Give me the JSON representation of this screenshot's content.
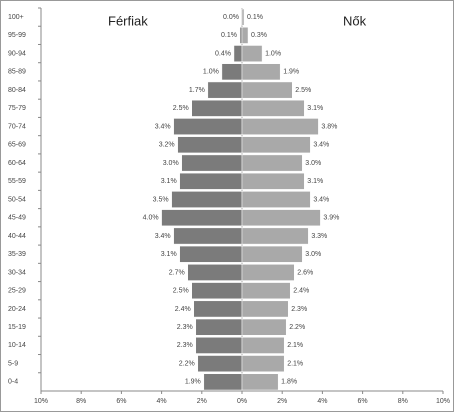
{
  "chart_data": {
    "type": "population-pyramid",
    "categories": [
      "100+",
      "95-99",
      "90-94",
      "85-89",
      "80-84",
      "75-79",
      "70-74",
      "65-69",
      "60-64",
      "55-59",
      "50-54",
      "45-49",
      "40-44",
      "35-39",
      "30-34",
      "25-29",
      "20-24",
      "15-19",
      "10-14",
      "5-9",
      "0-4"
    ],
    "series": [
      {
        "name": "Férfiak",
        "side": "left",
        "color": "#7b7b7b",
        "values": [
          0.0,
          0.1,
          0.4,
          1.0,
          1.7,
          2.5,
          3.4,
          3.2,
          3.0,
          3.1,
          3.5,
          4.0,
          3.4,
          3.1,
          2.7,
          2.5,
          2.4,
          2.3,
          2.3,
          2.2,
          1.9
        ],
        "value_labels": [
          "0.0%",
          "0.1%",
          "0.4%",
          "1.0%",
          "1.7%",
          "2.5%",
          "3.4%",
          "3.2%",
          "3.0%",
          "3.1%",
          "3.5%",
          "4.0%",
          "3.4%",
          "3.1%",
          "2.7%",
          "2.5%",
          "2.4%",
          "2.3%",
          "2.3%",
          "2.2%",
          "1.9%"
        ]
      },
      {
        "name": "Nők",
        "side": "right",
        "color": "#a9a9a9",
        "values": [
          0.1,
          0.3,
          1.0,
          1.9,
          2.5,
          3.1,
          3.8,
          3.4,
          3.0,
          3.1,
          3.4,
          3.9,
          3.3,
          3.0,
          2.6,
          2.4,
          2.3,
          2.2,
          2.1,
          2.1,
          1.8
        ],
        "value_labels": [
          "0.1%",
          "0.3%",
          "1.0%",
          "1.9%",
          "2.5%",
          "3.1%",
          "3.8%",
          "3.4%",
          "3.0%",
          "3.1%",
          "3.4%",
          "3.9%",
          "3.3%",
          "3.0%",
          "2.6%",
          "2.4%",
          "2.3%",
          "2.2%",
          "2.1%",
          "2.1%",
          "1.8%"
        ]
      }
    ],
    "xlim": [
      -10,
      10
    ],
    "xticks": [
      {
        "value": -10,
        "label": "10%"
      },
      {
        "value": -8,
        "label": "8%"
      },
      {
        "value": -6,
        "label": "6%"
      },
      {
        "value": -4,
        "label": "4%"
      },
      {
        "value": -2,
        "label": "2%"
      },
      {
        "value": 0,
        "label": "0%"
      },
      {
        "value": 2,
        "label": "2%"
      },
      {
        "value": 4,
        "label": "4%"
      },
      {
        "value": 6,
        "label": "6%"
      },
      {
        "value": 8,
        "label": "8%"
      },
      {
        "value": 10,
        "label": "10%"
      }
    ]
  }
}
